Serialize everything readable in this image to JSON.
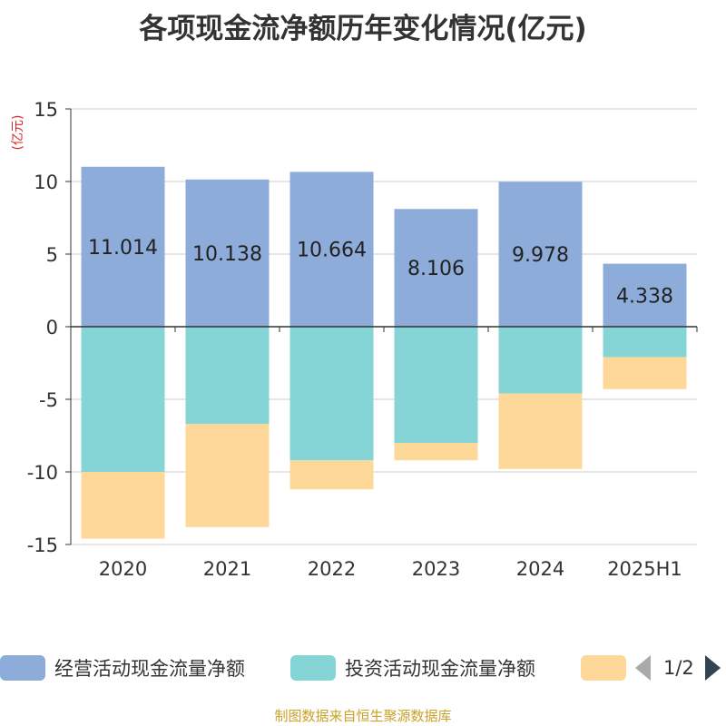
{
  "chart_data": {
    "type": "bar",
    "stacked": true,
    "title": "各项现金流净额历年变化情况(亿元)",
    "ylabel": "(亿元)",
    "ylim": [
      -15,
      15
    ],
    "yticks": [
      15,
      10,
      5,
      0,
      -5,
      -10,
      -15
    ],
    "grid": true,
    "legend_position": "bottom",
    "categories": [
      "2020",
      "2021",
      "2022",
      "2023",
      "2024",
      "2025H1"
    ],
    "series": [
      {
        "name": "经营活动现金流量净额",
        "color": "#8eacd9",
        "values": [
          11.014,
          10.138,
          10.664,
          8.106,
          9.978,
          4.338
        ],
        "labels": [
          "11.014",
          "10.138",
          "10.664",
          "8.106",
          "9.978",
          "4.338"
        ]
      },
      {
        "name": "投资活动现金流量净额",
        "color": "#86d5d6",
        "values": [
          -10.0,
          -6.7,
          -9.2,
          -8.0,
          -4.6,
          -2.1
        ]
      },
      {
        "name": "",
        "color": "#fdd898",
        "values": [
          -4.6,
          -7.1,
          -2.0,
          -1.2,
          -5.2,
          -2.2
        ]
      }
    ]
  },
  "legend": {
    "pager": "1/2"
  },
  "source": "制图数据来自恒生聚源数据库"
}
